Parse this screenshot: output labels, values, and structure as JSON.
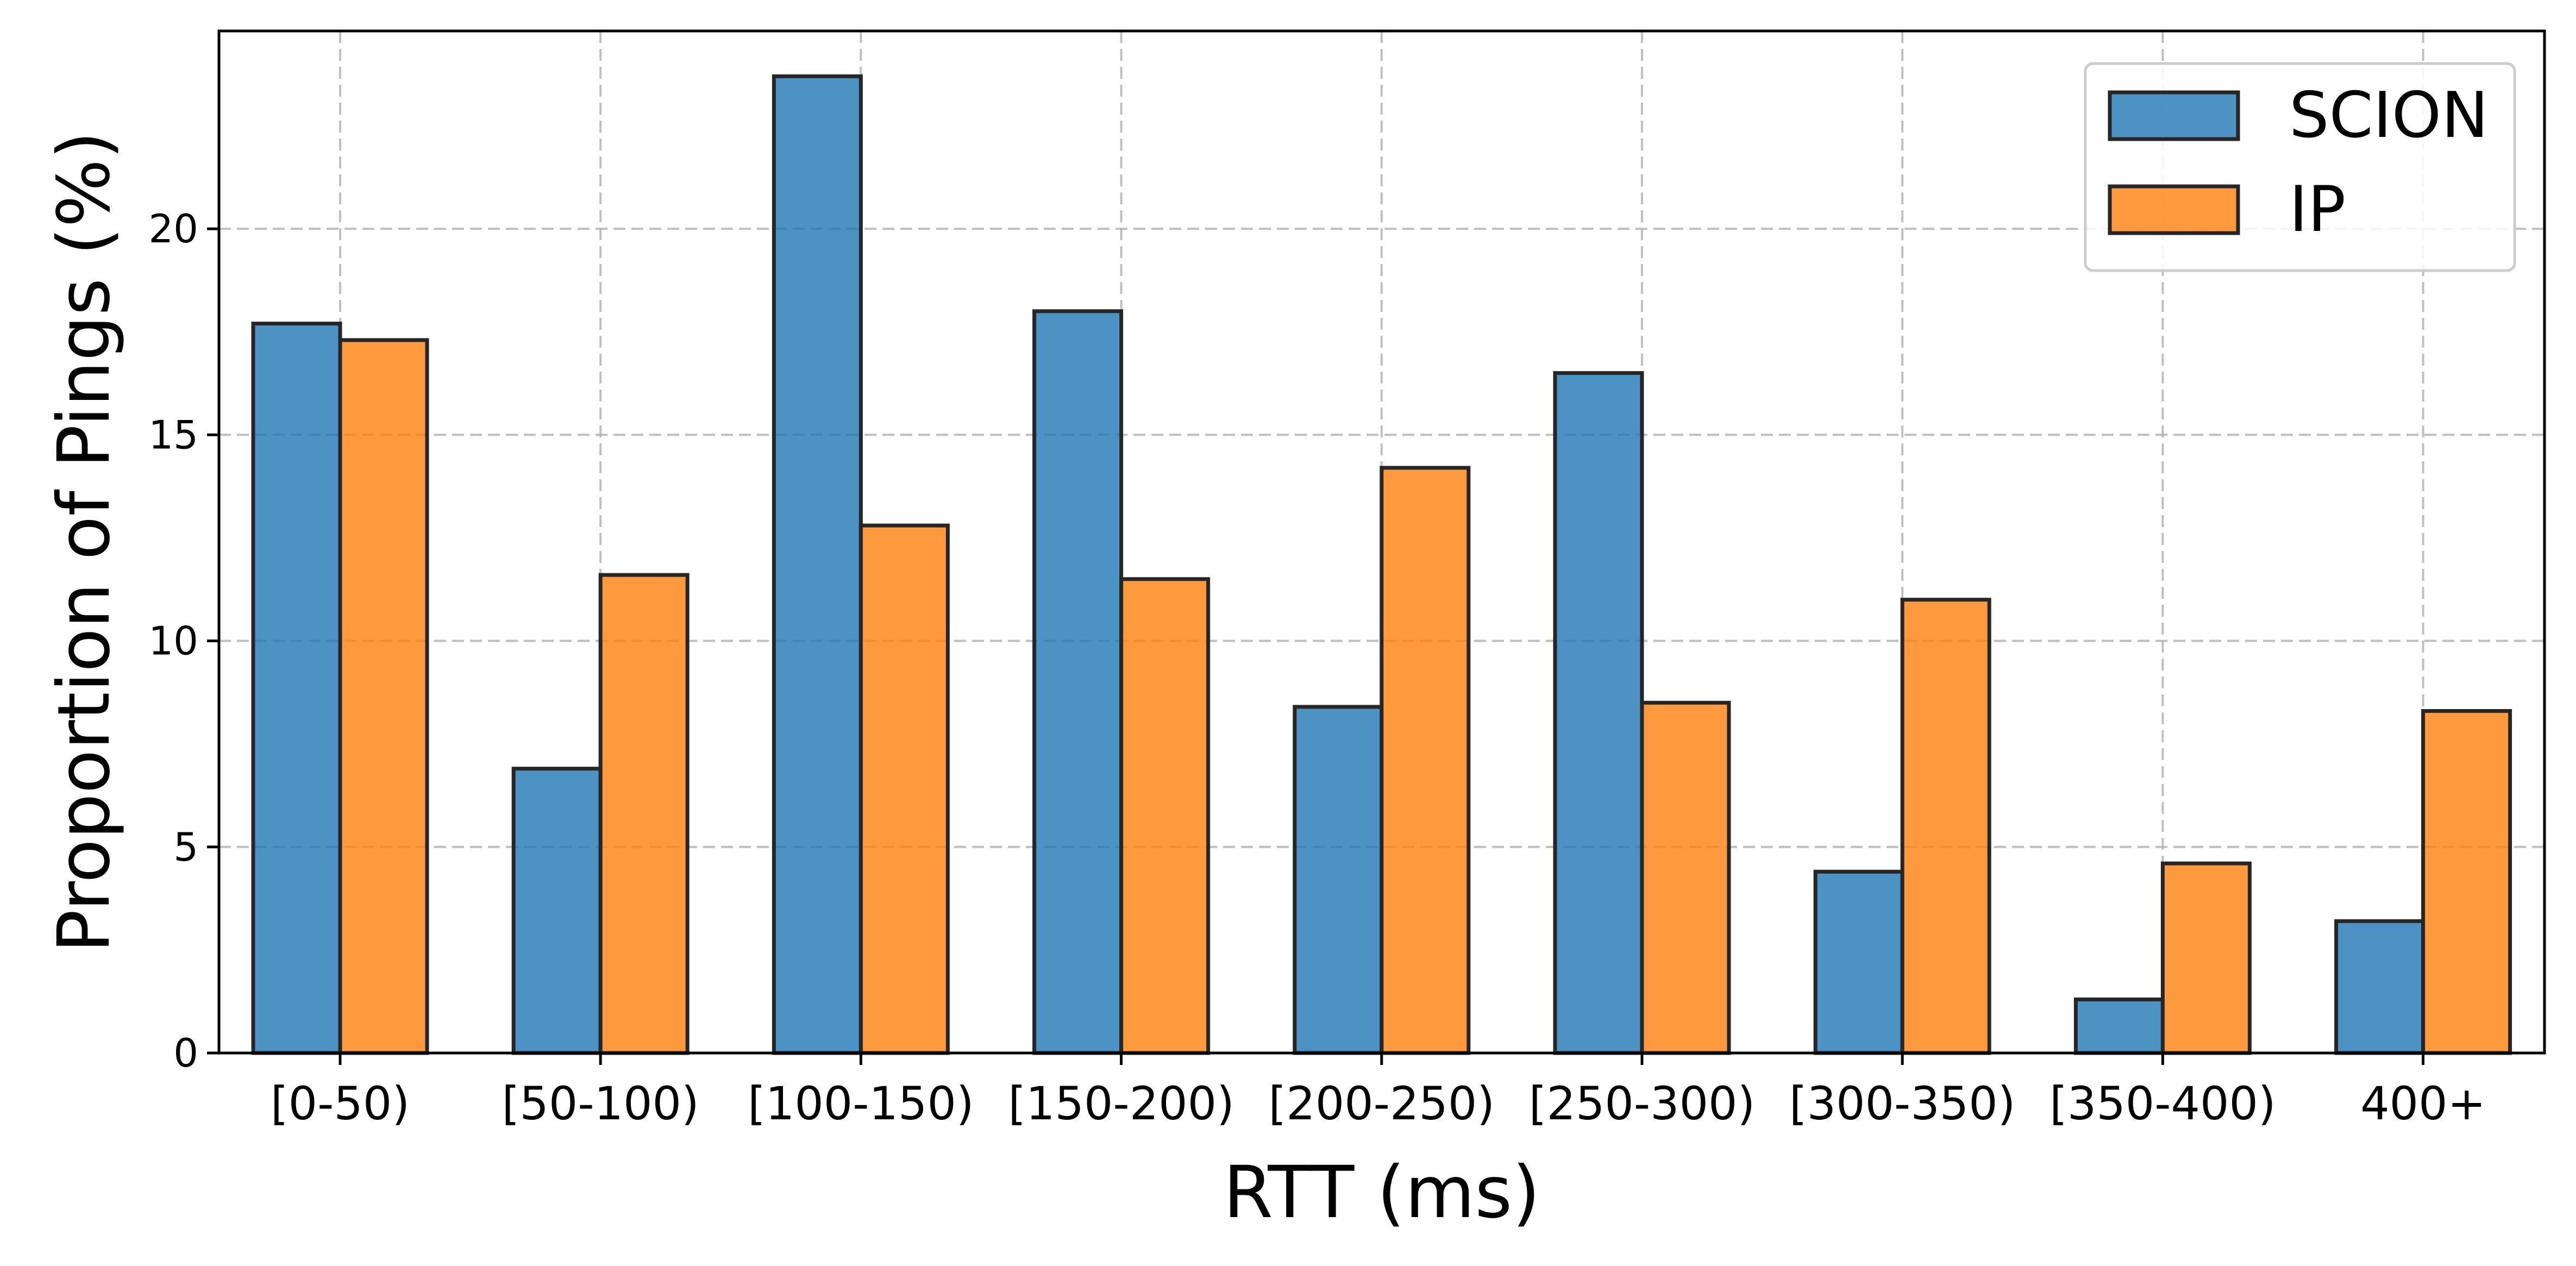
{
  "chart_data": {
    "type": "bar",
    "xlabel": "RTT (ms)",
    "ylabel": "Proportion of Pings (%)",
    "categories": [
      "[0-50)",
      "[50-100)",
      "[100-150)",
      "[150-200)",
      "[200-250)",
      "[250-300)",
      "[300-350)",
      "[350-400)",
      "400+"
    ],
    "series": [
      {
        "name": "SCION",
        "color": "#1f77b4",
        "values": [
          17.7,
          6.9,
          23.7,
          18.0,
          8.4,
          16.5,
          4.4,
          1.3,
          3.2
        ]
      },
      {
        "name": "IP",
        "color": "#ff7f0e",
        "values": [
          17.3,
          11.6,
          12.8,
          11.5,
          14.2,
          8.5,
          11.0,
          4.6,
          8.3
        ]
      }
    ],
    "ylim": [
      0,
      24.8
    ],
    "yticks": [
      "0",
      "5",
      "10",
      "15",
      "20"
    ],
    "grid": true,
    "legend_position": "top-right"
  }
}
